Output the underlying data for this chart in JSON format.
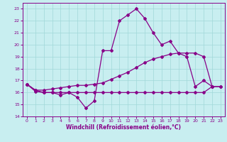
{
  "xlabel": "Windchill (Refroidissement éolien,°C)",
  "ylabel": "",
  "xlim": [
    -0.5,
    23.5
  ],
  "ylim": [
    14,
    23.5
  ],
  "yticks": [
    14,
    15,
    16,
    17,
    18,
    19,
    20,
    21,
    22,
    23
  ],
  "xticks": [
    0,
    1,
    2,
    3,
    4,
    5,
    6,
    7,
    8,
    9,
    10,
    11,
    12,
    13,
    14,
    15,
    16,
    17,
    18,
    19,
    20,
    21,
    22,
    23
  ],
  "background_color": "#c8eef0",
  "line_color": "#880088",
  "grid_color": "#a0d8d8",
  "series1_y": [
    16.7,
    16.2,
    16.0,
    16.0,
    15.8,
    16.0,
    15.6,
    14.7,
    15.3,
    19.5,
    19.5,
    22.0,
    22.5,
    23.0,
    22.2,
    21.0,
    20.0,
    20.3,
    19.3,
    19.0,
    16.5,
    17.0,
    16.5,
    null
  ],
  "series2_y": [
    16.7,
    16.1,
    16.0,
    16.0,
    16.0,
    16.0,
    16.0,
    16.0,
    16.0,
    16.0,
    16.0,
    16.0,
    16.0,
    16.0,
    16.0,
    16.0,
    16.0,
    16.0,
    16.0,
    16.0,
    16.0,
    16.0,
    16.5,
    16.5
  ],
  "series3_y": [
    16.7,
    16.2,
    16.2,
    16.3,
    16.4,
    16.5,
    16.6,
    16.6,
    16.7,
    16.8,
    17.1,
    17.4,
    17.7,
    18.1,
    18.5,
    18.8,
    19.0,
    19.2,
    19.3,
    19.3,
    19.3,
    19.0,
    16.5,
    16.5
  ]
}
